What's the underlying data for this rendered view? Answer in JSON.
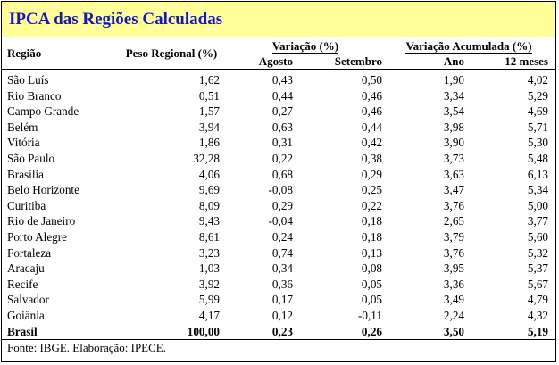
{
  "title": "IPCA das Regiões Calculadas",
  "headers": {
    "regiao": "Região",
    "peso": "Peso Regional (%)",
    "variacao": "Variação (%)",
    "agosto": "Agosto",
    "setembro": "Setembro",
    "acumulada": "Variação Acumulada (%)",
    "ano": "Ano",
    "doze_meses": "12 meses"
  },
  "rows": [
    {
      "regiao": "São Luís",
      "peso": "1,62",
      "agosto": "0,43",
      "setembro": "0,50",
      "ano": "1,90",
      "doze": "4,02"
    },
    {
      "regiao": "Rio Branco",
      "peso": "0,51",
      "agosto": "0,44",
      "setembro": "0,46",
      "ano": "3,34",
      "doze": "5,29"
    },
    {
      "regiao": "Campo Grande",
      "peso": "1,57",
      "agosto": "0,27",
      "setembro": "0,46",
      "ano": "3,54",
      "doze": "4,69"
    },
    {
      "regiao": "Belém",
      "peso": "3,94",
      "agosto": "0,63",
      "setembro": "0,44",
      "ano": "3,98",
      "doze": "5,71"
    },
    {
      "regiao": "Vitória",
      "peso": "1,86",
      "agosto": "0,31",
      "setembro": "0,42",
      "ano": "3,90",
      "doze": "5,30"
    },
    {
      "regiao": "São Paulo",
      "peso": "32,28",
      "agosto": "0,22",
      "setembro": "0,38",
      "ano": "3,73",
      "doze": "5,48"
    },
    {
      "regiao": "Brasília",
      "peso": "4,06",
      "agosto": "0,68",
      "setembro": "0,29",
      "ano": "3,63",
      "doze": "6,13"
    },
    {
      "regiao": "Belo Horizonte",
      "peso": "9,69",
      "agosto": "-0,08",
      "setembro": "0,25",
      "ano": "3,47",
      "doze": "5,34"
    },
    {
      "regiao": "Curitiba",
      "peso": "8,09",
      "agosto": "0,29",
      "setembro": "0,22",
      "ano": "3,76",
      "doze": "5,00"
    },
    {
      "regiao": "Rio de Janeiro",
      "peso": "9,43",
      "agosto": "-0,04",
      "setembro": "0,18",
      "ano": "2,65",
      "doze": "3,77"
    },
    {
      "regiao": "Porto Alegre",
      "peso": "8,61",
      "agosto": "0,24",
      "setembro": "0,18",
      "ano": "3,79",
      "doze": "5,60"
    },
    {
      "regiao": "Fortaleza",
      "peso": "3,23",
      "agosto": "0,74",
      "setembro": "0,13",
      "ano": "3,76",
      "doze": "5,32"
    },
    {
      "regiao": "Aracaju",
      "peso": "1,03",
      "agosto": "0,34",
      "setembro": "0,08",
      "ano": "3,95",
      "doze": "5,37"
    },
    {
      "regiao": "Recife",
      "peso": "3,92",
      "agosto": "0,36",
      "setembro": "0,05",
      "ano": "3,36",
      "doze": "5,67"
    },
    {
      "regiao": "Salvador",
      "peso": "5,99",
      "agosto": "0,17",
      "setembro": "0,05",
      "ano": "3,49",
      "doze": "4,79"
    },
    {
      "regiao": "Goiânia",
      "peso": "4,17",
      "agosto": "0,12",
      "setembro": "-0,11",
      "ano": "2,24",
      "doze": "4,32"
    }
  ],
  "total": {
    "regiao": "Brasil",
    "peso": "100,00",
    "agosto": "0,23",
    "setembro": "0,26",
    "ano": "3,50",
    "doze": "5,19"
  },
  "footer": "Fonte: IBGE. Elaboração: IPECE.",
  "colors": {
    "title_bg": "#ffff99",
    "title_text": "#1414c8"
  }
}
